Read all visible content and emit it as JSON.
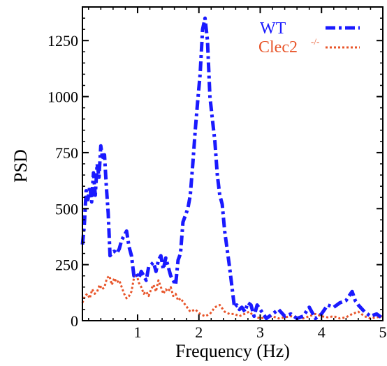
{
  "chart_data": {
    "type": "line",
    "title": "",
    "xlabel": "Frequency (Hz)",
    "ylabel": "PSD",
    "xlim": [
      0.1,
      5
    ],
    "ylim": [
      0,
      1400
    ],
    "x_ticks": [
      1,
      2,
      3,
      4,
      5
    ],
    "x_tick_labels": [
      "1",
      "2",
      "3",
      "4",
      "5"
    ],
    "y_ticks": [
      0,
      250,
      500,
      750,
      1000,
      1250
    ],
    "y_tick_labels": [
      "0",
      "250",
      "500",
      "750",
      "1000",
      "1250"
    ],
    "grid": false,
    "legend_position": "top-right",
    "series": [
      {
        "name": "WT",
        "color": "#1a1aff",
        "style": "dash-dot",
        "x": [
          0.1,
          0.13,
          0.16,
          0.19,
          0.22,
          0.25,
          0.28,
          0.31,
          0.34,
          0.37,
          0.4,
          0.43,
          0.46,
          0.49,
          0.52,
          0.55,
          0.58,
          0.62,
          0.66,
          0.7,
          0.74,
          0.78,
          0.82,
          0.86,
          0.9,
          0.94,
          0.98,
          1.02,
          1.06,
          1.1,
          1.14,
          1.18,
          1.22,
          1.26,
          1.3,
          1.34,
          1.38,
          1.42,
          1.46,
          1.5,
          1.54,
          1.58,
          1.62,
          1.66,
          1.7,
          1.74,
          1.78,
          1.82,
          1.86,
          1.9,
          1.94,
          1.98,
          2.02,
          2.06,
          2.1,
          2.14,
          2.18,
          2.22,
          2.26,
          2.3,
          2.34,
          2.38,
          2.42,
          2.46,
          2.5,
          2.54,
          2.58,
          2.62,
          2.66,
          2.7,
          2.75,
          2.8,
          2.85,
          2.9,
          2.95,
          3.0,
          3.1,
          3.2,
          3.3,
          3.4,
          3.5,
          3.6,
          3.7,
          3.8,
          3.9,
          4.0,
          4.1,
          4.2,
          4.3,
          4.4,
          4.45,
          4.5,
          4.55,
          4.6,
          4.7,
          4.8,
          4.9,
          5.0
        ],
        "y": [
          340,
          420,
          580,
          540,
          600,
          530,
          660,
          560,
          700,
          640,
          780,
          720,
          740,
          600,
          480,
          290,
          300,
          310,
          300,
          320,
          360,
          380,
          400,
          330,
          290,
          200,
          210,
          190,
          220,
          200,
          180,
          240,
          250,
          260,
          220,
          270,
          290,
          230,
          280,
          240,
          200,
          180,
          160,
          270,
          300,
          440,
          470,
          500,
          560,
          700,
          850,
          980,
          1100,
          1300,
          1350,
          1250,
          1000,
          900,
          800,
          650,
          560,
          520,
          400,
          320,
          240,
          150,
          60,
          70,
          50,
          60,
          40,
          80,
          70,
          20,
          70,
          50,
          10,
          30,
          50,
          20,
          30,
          10,
          20,
          60,
          10,
          30,
          70,
          60,
          80,
          90,
          110,
          130,
          90,
          70,
          40,
          20,
          30,
          10
        ]
      },
      {
        "name": "Clec2-/-",
        "color": "#e8552a",
        "style": "dotted",
        "x": [
          0.1,
          0.14,
          0.18,
          0.22,
          0.26,
          0.3,
          0.34,
          0.38,
          0.42,
          0.46,
          0.5,
          0.54,
          0.58,
          0.62,
          0.66,
          0.7,
          0.74,
          0.78,
          0.82,
          0.86,
          0.9,
          0.94,
          0.98,
          1.02,
          1.06,
          1.1,
          1.14,
          1.18,
          1.22,
          1.26,
          1.3,
          1.34,
          1.38,
          1.42,
          1.46,
          1.5,
          1.54,
          1.58,
          1.62,
          1.66,
          1.7,
          1.78,
          1.86,
          1.94,
          2.02,
          2.1,
          2.18,
          2.26,
          2.34,
          2.42,
          2.5,
          2.58,
          2.66,
          2.74,
          2.82,
          2.9,
          3.0,
          3.1,
          3.2,
          3.3,
          3.4,
          3.5,
          3.6,
          3.7,
          3.8,
          3.9,
          4.0,
          4.1,
          4.2,
          4.3,
          4.4,
          4.5,
          4.6,
          4.7,
          4.8,
          4.9,
          5.0
        ],
        "y": [
          80,
          110,
          120,
          100,
          140,
          120,
          130,
          160,
          140,
          150,
          190,
          200,
          160,
          190,
          170,
          180,
          150,
          120,
          100,
          110,
          130,
          190,
          210,
          170,
          150,
          120,
          130,
          110,
          140,
          160,
          130,
          180,
          150,
          120,
          140,
          130,
          150,
          110,
          120,
          90,
          100,
          70,
          40,
          50,
          30,
          20,
          30,
          60,
          70,
          40,
          30,
          30,
          20,
          30,
          40,
          20,
          10,
          15,
          20,
          10,
          15,
          20,
          15,
          10,
          20,
          30,
          20,
          15,
          20,
          10,
          15,
          30,
          40,
          20,
          10,
          15,
          20
        ]
      }
    ]
  },
  "legend": {
    "wt_label": "WT",
    "ko_label": "Clec2",
    "ko_sup": "-/-"
  }
}
